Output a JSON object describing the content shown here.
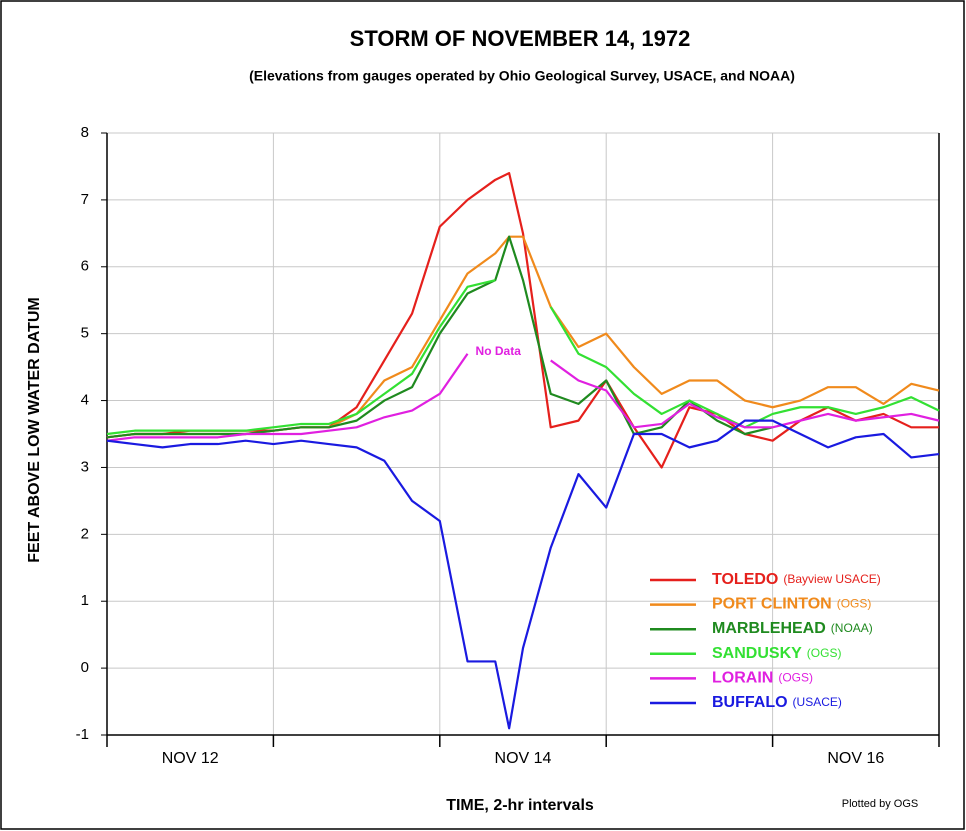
{
  "chart_data": {
    "type": "line",
    "title": "STORM OF NOVEMBER 14, 1972",
    "subtitle": "(Elevations from gauges operated by Ohio Geological Survey, USACE, and NOAA)",
    "xlabel": "TIME, 2-hr intervals",
    "ylabel": "FEET ABOVE LOW WATER DATUM",
    "credit": "Plotted by OGS",
    "annotation": {
      "text": "No Data",
      "x": 52,
      "y": 5,
      "color": "#e020e0"
    },
    "x": [
      0,
      4,
      8,
      12,
      16,
      20,
      24,
      28,
      32,
      36,
      40,
      44,
      48,
      52,
      56,
      58,
      60,
      64,
      68,
      72,
      76,
      80,
      84,
      88,
      92,
      96,
      100,
      104,
      108,
      112,
      116,
      120
    ],
    "series": [
      {
        "name": "TOLEDO",
        "source": "(Bayview USACE)",
        "color": "#e5201c",
        "values": [
          3.45,
          3.5,
          3.5,
          3.55,
          3.55,
          3.55,
          3.55,
          3.6,
          3.6,
          3.9,
          4.6,
          5.3,
          6.6,
          7.0,
          7.3,
          7.4,
          6.5,
          3.6,
          3.7,
          4.3,
          3.6,
          3.0,
          3.9,
          3.8,
          3.5,
          3.4,
          3.7,
          3.9,
          3.7,
          3.8,
          3.6,
          3.6
        ]
      },
      {
        "name": "PORT CLINTON",
        "source": "(OGS)",
        "color": "#f08a1c",
        "values": [
          3.45,
          3.5,
          3.5,
          3.5,
          3.5,
          3.5,
          3.55,
          3.6,
          3.6,
          3.8,
          4.3,
          4.5,
          5.2,
          5.9,
          6.2,
          6.45,
          6.45,
          5.4,
          4.8,
          5.0,
          4.5,
          4.1,
          4.3,
          4.3,
          4.0,
          3.9,
          4.0,
          4.2,
          4.2,
          3.95,
          4.25,
          4.15
        ]
      },
      {
        "name": "MARBLEHEAD",
        "source": "(NOAA)",
        "color": "#1f8a1f",
        "values": [
          3.45,
          3.5,
          3.5,
          3.5,
          3.5,
          3.5,
          3.55,
          3.6,
          3.6,
          3.7,
          4.0,
          4.2,
          5.0,
          5.6,
          5.8,
          6.45,
          5.8,
          4.1,
          3.95,
          4.3,
          3.5,
          3.6,
          4.0,
          3.7,
          3.5,
          3.6,
          null,
          null,
          null,
          null,
          null,
          null
        ]
      },
      {
        "name": "SANDUSKY",
        "source": "(OGS)",
        "color": "#33e033",
        "values": [
          3.5,
          3.55,
          3.55,
          3.55,
          3.55,
          3.55,
          3.6,
          3.65,
          3.65,
          3.8,
          4.1,
          4.4,
          5.1,
          5.7,
          5.8,
          null,
          null,
          5.4,
          4.7,
          4.5,
          4.1,
          3.8,
          4.0,
          3.8,
          3.6,
          3.8,
          3.9,
          3.9,
          3.8,
          3.9,
          4.05,
          3.85
        ]
      },
      {
        "name": "LORAIN",
        "source": "(OGS)",
        "color": "#e020e0",
        "values": [
          3.4,
          3.45,
          3.45,
          3.45,
          3.45,
          3.5,
          3.5,
          3.5,
          3.55,
          3.6,
          3.75,
          3.85,
          4.1,
          4.7,
          null,
          null,
          null,
          4.6,
          4.3,
          4.15,
          3.6,
          3.65,
          3.95,
          3.75,
          3.6,
          3.6,
          3.7,
          3.8,
          3.7,
          3.75,
          3.8,
          3.7
        ]
      },
      {
        "name": "BUFFALO",
        "source": "(USACE)",
        "color": "#1a1ae0",
        "values": [
          3.4,
          3.35,
          3.3,
          3.35,
          3.35,
          3.4,
          3.35,
          3.4,
          3.35,
          3.3,
          3.1,
          2.5,
          2.2,
          0.1,
          0.1,
          -0.9,
          0.3,
          1.8,
          2.9,
          2.4,
          3.5,
          3.5,
          3.3,
          3.4,
          3.7,
          3.7,
          3.5,
          3.3,
          3.45,
          3.5,
          3.15,
          3.2
        ]
      }
    ],
    "xlim": [
      0,
      120
    ],
    "xgrid": [
      0,
      24,
      48,
      72,
      96,
      120
    ],
    "xticks": [
      {
        "value": 12,
        "label": "NOV 12"
      },
      {
        "value": 60,
        "label": "NOV 14"
      },
      {
        "value": 108,
        "label": "NOV 16"
      }
    ],
    "ylim": [
      -1,
      8
    ],
    "yticks": [
      -1,
      0,
      1,
      2,
      3,
      4,
      5,
      6,
      7,
      8
    ],
    "grid": true,
    "legend": "lower right"
  }
}
